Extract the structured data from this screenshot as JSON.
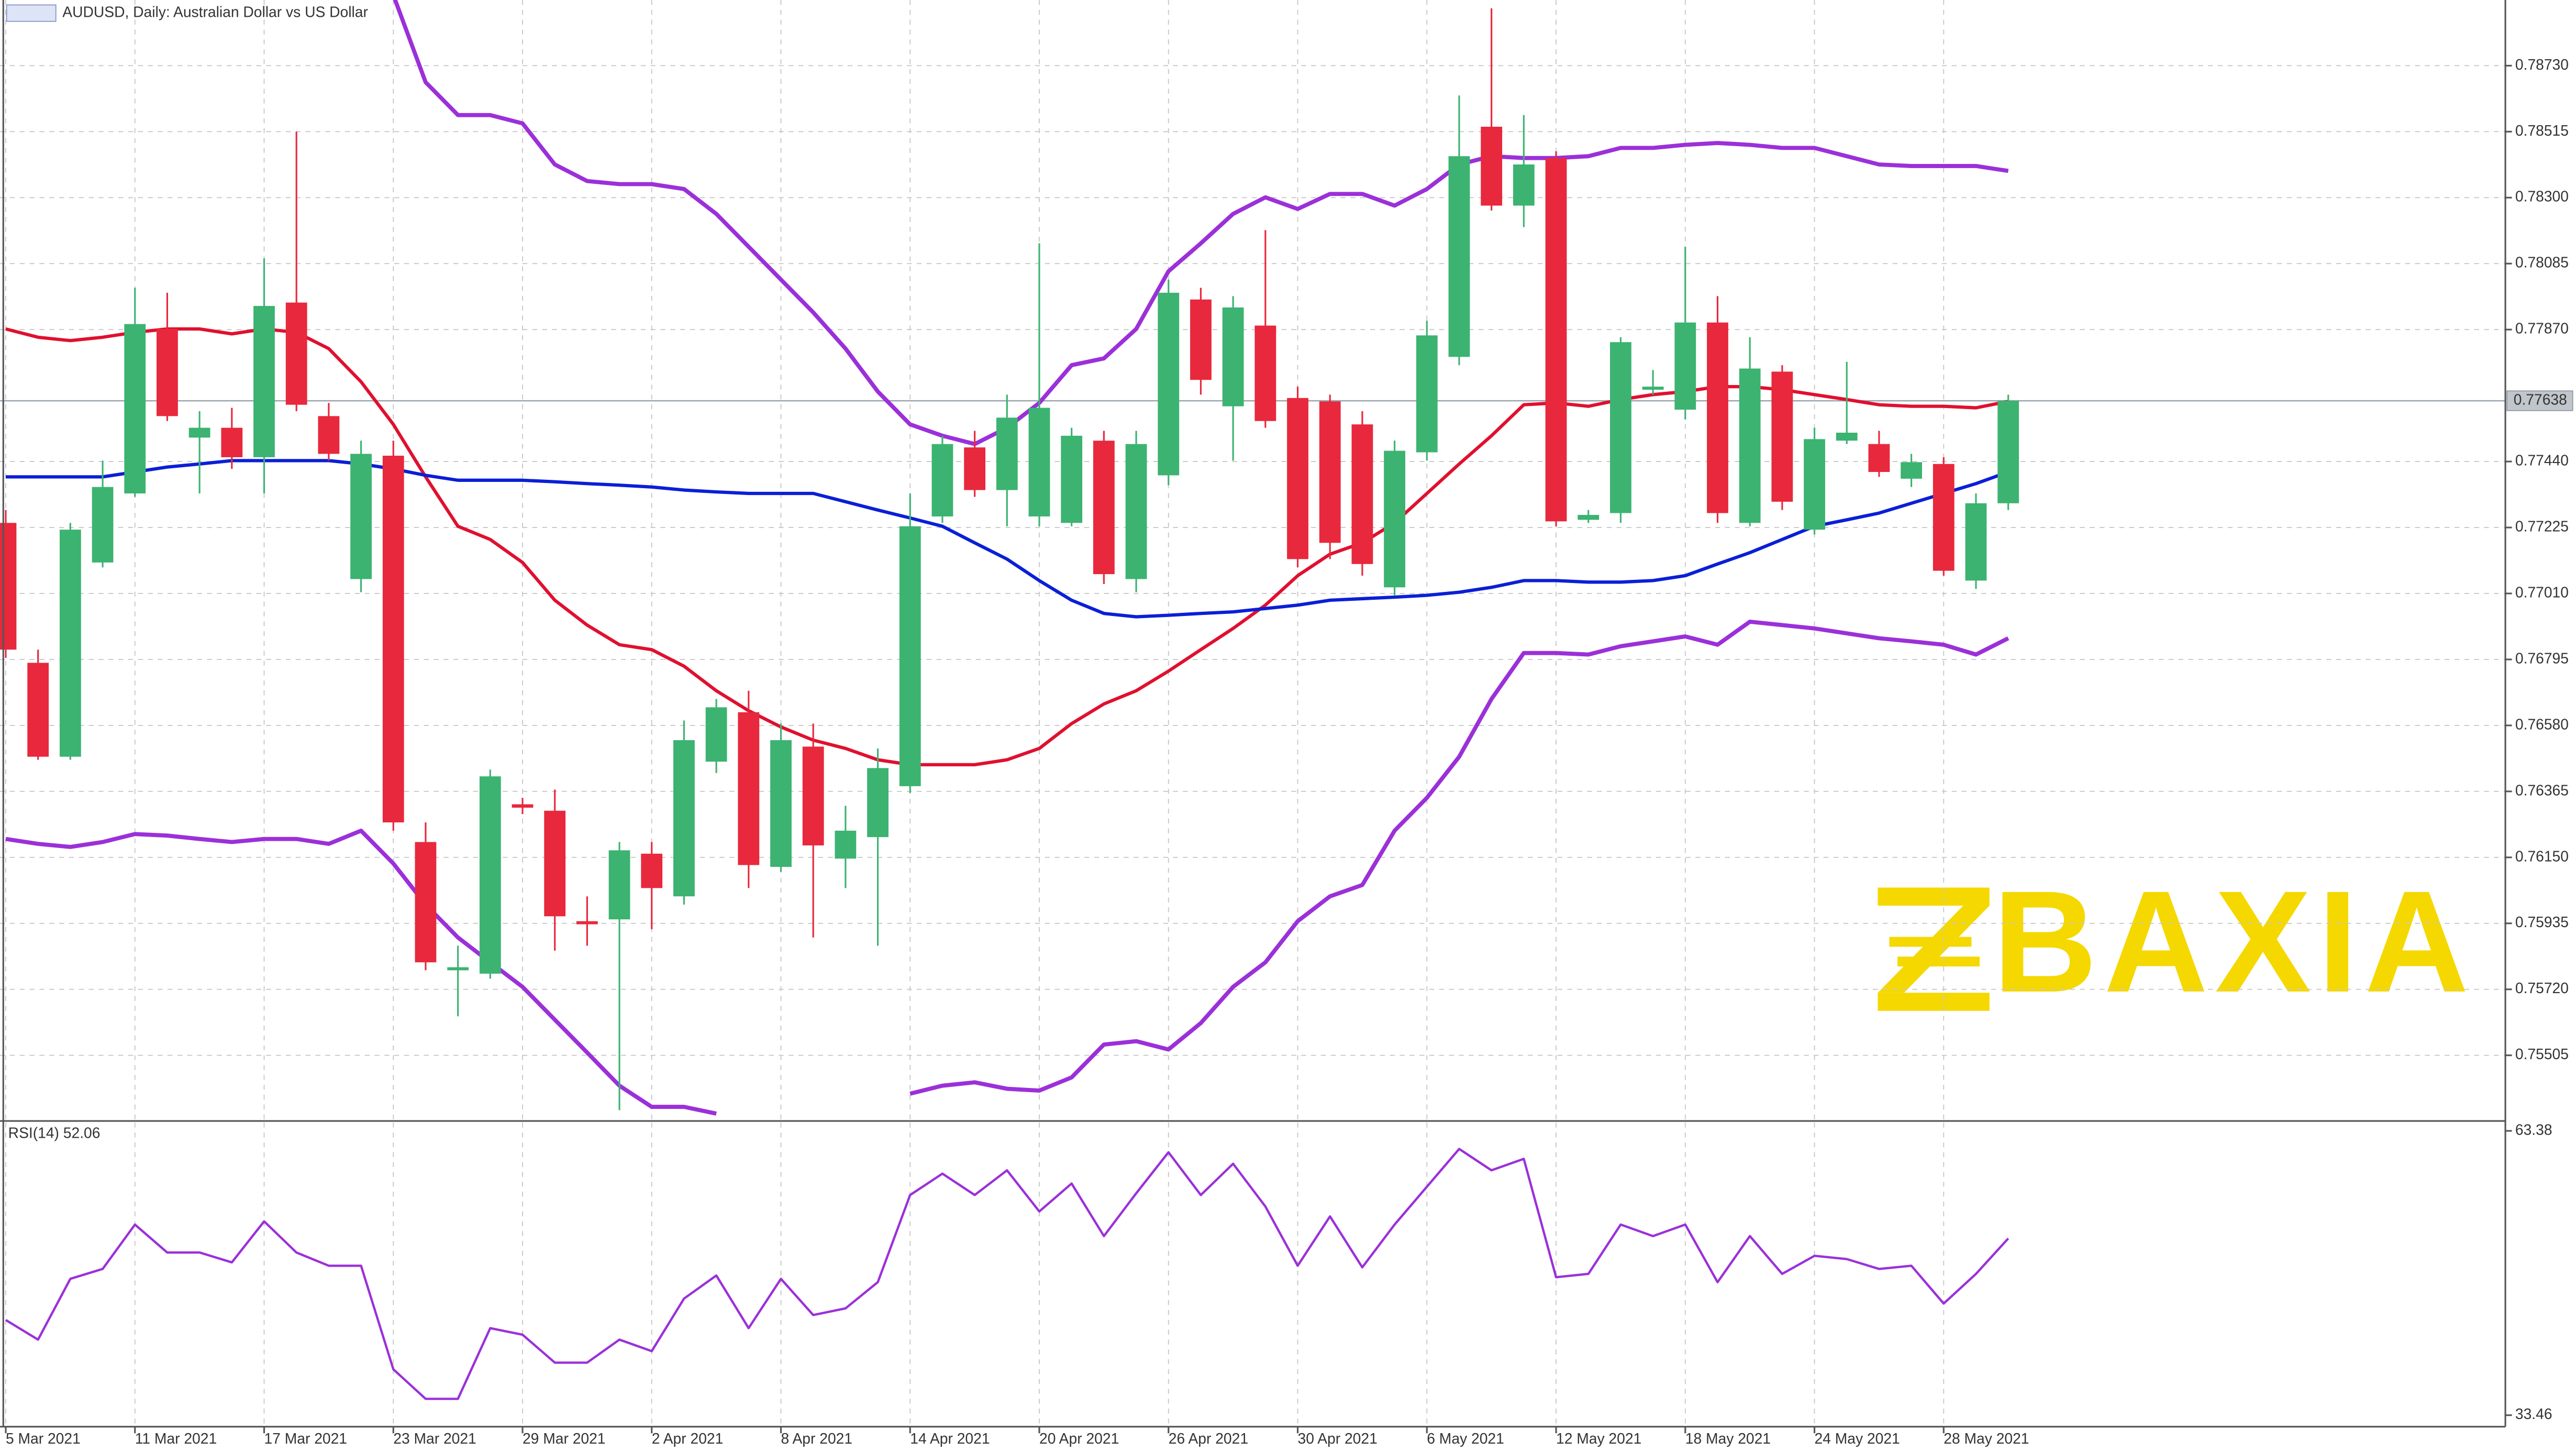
{
  "chart_data": {
    "type": "candlestick",
    "title": "AUDUSD, Daily:  Australian Dollar vs US Dollar",
    "watermark": "BAXIA",
    "categories": [
      "5 Mar 2021",
      null,
      null,
      null,
      "11 Mar 2021",
      null,
      null,
      null,
      "17 Mar 2021",
      null,
      null,
      null,
      "23 Mar 2021",
      null,
      null,
      null,
      "29 Mar 2021",
      null,
      null,
      null,
      "2 Apr 2021",
      null,
      null,
      null,
      "8 Apr 2021",
      null,
      null,
      null,
      "14 Apr 2021",
      null,
      null,
      null,
      "20 Apr 2021",
      null,
      null,
      null,
      "26 Apr 2021",
      null,
      null,
      null,
      "30 Apr 2021",
      null,
      null,
      null,
      "6 May 2021",
      null,
      null,
      null,
      "12 May 2021",
      null,
      null,
      null,
      "18 May 2021",
      null,
      null,
      null,
      "24 May 2021",
      null,
      null,
      null,
      "28 May 2021",
      null,
      null
    ],
    "candles": {
      "up_color": "#3cb371",
      "down_color": "#e8283c",
      "open": [
        0.7724,
        0.76784,
        0.76478,
        0.77111,
        0.77336,
        0.77872,
        0.77518,
        0.7755,
        0.77454,
        0.77958,
        0.77588,
        0.77057,
        0.77459,
        0.762,
        0.75782,
        0.75771,
        0.76323,
        0.76302,
        0.75942,
        0.75948,
        0.76162,
        0.76023,
        0.76462,
        0.76623,
        0.76119,
        0.76511,
        0.76146,
        0.76216,
        0.76382,
        0.77261,
        0.77486,
        0.77347,
        0.77261,
        0.7724,
        0.77508,
        0.77057,
        0.77395,
        0.77968,
        0.7762,
        0.77883,
        0.77647,
        0.77636,
        0.77561,
        0.7703,
        0.7747,
        0.77781,
        0.78531,
        0.78274,
        0.78429,
        0.7725,
        0.77272,
        0.77674,
        0.77609,
        0.77893,
        0.7724,
        0.77733,
        0.77218,
        0.77508,
        0.77497,
        0.77384,
        0.77432,
        0.77052,
        0.77304
      ],
      "high": [
        0.77282,
        0.76827,
        0.7724,
        0.77443,
        0.78006,
        0.7799,
        0.77604,
        0.77615,
        0.78102,
        0.78515,
        0.77631,
        0.77508,
        0.77508,
        0.76264,
        0.75862,
        0.76436,
        0.76344,
        0.76371,
        0.76023,
        0.762,
        0.762,
        0.76596,
        0.76666,
        0.76693,
        0.76586,
        0.76586,
        0.76318,
        0.76505,
        0.77336,
        0.77524,
        0.7754,
        0.77658,
        0.78151,
        0.7755,
        0.7754,
        0.7754,
        0.78033,
        0.78006,
        0.77979,
        0.78194,
        0.77684,
        0.77658,
        0.77604,
        0.77508,
        0.77899,
        0.78633,
        0.78917,
        0.78569,
        0.78451,
        0.77282,
        0.77845,
        0.77738,
        0.7814,
        0.77979,
        0.77845,
        0.77754,
        0.7755,
        0.77765,
        0.7754,
        0.77465,
        0.77454,
        0.77336,
        0.77658
      ],
      "low": [
        0.768,
        0.76468,
        0.76468,
        0.77095,
        0.77325,
        0.77572,
        0.77336,
        0.77416,
        0.77336,
        0.77604,
        0.77443,
        0.77014,
        0.76237,
        0.75782,
        0.75632,
        0.75755,
        0.76291,
        0.75846,
        0.75862,
        0.75326,
        0.75916,
        0.75996,
        0.76425,
        0.7605,
        0.76103,
        0.75889,
        0.7605,
        0.75862,
        0.7636,
        0.7724,
        0.77325,
        0.77229,
        0.77229,
        0.77229,
        0.77041,
        0.77014,
        0.77363,
        0.77658,
        0.77443,
        0.7755,
        0.77095,
        0.77122,
        0.77068,
        0.77004,
        0.77443,
        0.77754,
        0.78258,
        0.78204,
        0.77229,
        0.7724,
        0.7724,
        0.77658,
        0.77577,
        0.7724,
        0.77229,
        0.77282,
        0.77202,
        0.77497,
        0.7739,
        0.77357,
        0.77068,
        0.77025,
        0.77282
      ],
      "close": [
        0.76827,
        0.76478,
        0.77218,
        0.77357,
        0.77888,
        0.77588,
        0.7755,
        0.77454,
        0.77947,
        0.77625,
        0.77465,
        0.77465,
        0.76264,
        0.75808,
        0.75792,
        0.76414,
        0.76312,
        0.75958,
        0.75932,
        0.76173,
        0.7605,
        0.76532,
        0.76639,
        0.76125,
        0.76532,
        0.76189,
        0.76237,
        0.76441,
        0.77229,
        0.77497,
        0.77347,
        0.77583,
        0.77615,
        0.77524,
        0.77073,
        0.77497,
        0.7799,
        0.77706,
        0.77942,
        0.77572,
        0.77122,
        0.77175,
        0.77106,
        0.77475,
        0.77851,
        0.78435,
        0.78274,
        0.78408,
        0.77245,
        0.77266,
        0.77829,
        0.77684,
        0.77893,
        0.77272,
        0.77743,
        0.77309,
        0.77513,
        0.77534,
        0.77406,
        0.77438,
        0.77084,
        0.77304,
        0.77638
      ]
    },
    "lines": [
      {
        "color": "#e0102f",
        "width": 2,
        "values": [
          0.77872,
          0.77845,
          0.77834,
          0.77845,
          0.77861,
          0.77872,
          0.77872,
          0.77856,
          0.77872,
          0.77861,
          0.77808,
          0.777,
          0.77561,
          0.7739,
          0.77229,
          0.77186,
          0.77111,
          0.76988,
          0.76907,
          0.76843,
          0.76827,
          0.76773,
          0.76693,
          0.76628,
          0.76575,
          0.76532,
          0.76505,
          0.76468,
          0.76452,
          0.76452,
          0.76452,
          0.76468,
          0.76505,
          0.76586,
          0.7665,
          0.76693,
          0.76757,
          0.76827,
          0.76896,
          0.76972,
          0.77068,
          0.77138,
          0.77175,
          0.7724,
          0.77336,
          0.77432,
          0.77524,
          0.77625,
          0.77631,
          0.7762,
          0.77642,
          0.77658,
          0.77668,
          0.77684,
          0.77684,
          0.77674,
          0.77658,
          0.77642,
          0.77625,
          0.7762,
          0.7762,
          0.77615,
          0.77636
        ]
      },
      {
        "color": "#0a1fd6",
        "width": 2,
        "values": [
          0.7739,
          0.7739,
          0.7739,
          0.7739,
          0.77406,
          0.77422,
          0.77432,
          0.77443,
          0.77443,
          0.77443,
          0.77443,
          0.77432,
          0.77416,
          0.77395,
          0.77379,
          0.77379,
          0.77379,
          0.77374,
          0.77368,
          0.77363,
          0.77357,
          0.77347,
          0.77341,
          0.77336,
          0.77336,
          0.77336,
          0.77309,
          0.77282,
          0.77256,
          0.77229,
          0.77175,
          0.77122,
          0.77052,
          0.76988,
          0.76945,
          0.76934,
          0.76939,
          0.76945,
          0.7695,
          0.76961,
          0.76972,
          0.76988,
          0.76993,
          0.76998,
          0.77004,
          0.77014,
          0.7703,
          0.77052,
          0.77052,
          0.77047,
          0.77047,
          0.77052,
          0.77068,
          0.77106,
          0.77143,
          0.77186,
          0.77229,
          0.7725,
          0.77272,
          0.77304,
          0.77336,
          0.77368,
          0.77406
        ]
      },
      {
        "color": "#9b30d9",
        "width": 2.5,
        "values": [
          null,
          null,
          null,
          null,
          null,
          null,
          null,
          null,
          null,
          null,
          null,
          null,
          0.7896,
          0.78676,
          0.78569,
          0.78569,
          0.78542,
          0.78408,
          0.78354,
          0.78344,
          0.78344,
          0.78328,
          0.78247,
          0.7814,
          0.78033,
          0.77926,
          0.77808,
          0.77668,
          0.77561,
          0.77524,
          0.77497,
          0.7755,
          0.77631,
          0.77754,
          0.77776,
          0.77872,
          0.7806,
          0.78151,
          0.78247,
          0.78301,
          0.78263,
          0.78312,
          0.78312,
          0.78274,
          0.78328,
          0.78408,
          0.78435,
          0.78429,
          0.78429,
          0.78435,
          0.78462,
          0.78462,
          0.78472,
          0.78478,
          0.78472,
          0.78462,
          0.78462,
          0.78435,
          0.78408,
          0.78403,
          0.78403,
          0.78403,
          0.78387
        ]
      },
      {
        "color": "#9b30d9",
        "width": 2.5,
        "values": [
          0.7621,
          0.76194,
          0.76184,
          0.762,
          0.76226,
          0.76221,
          0.7621,
          0.762,
          0.7621,
          0.7621,
          0.76194,
          0.76237,
          0.7613,
          0.75996,
          0.75889,
          0.75808,
          0.75728,
          0.75621,
          0.75514,
          0.75406,
          0.75337,
          0.75337,
          0.75315,
          null,
          null,
          null,
          null,
          null,
          0.7538,
          0.75406,
          0.75417,
          0.75396,
          0.7539,
          0.75433,
          0.7554,
          0.75551,
          0.75524,
          0.7561,
          0.75728,
          0.75808,
          0.75942,
          0.76023,
          0.7606,
          0.76237,
          0.76344,
          0.76478,
          0.76666,
          0.76816,
          0.76816,
          0.76811,
          0.76838,
          0.76854,
          0.7687,
          0.76843,
          0.76918,
          0.76907,
          0.76896,
          0.7688,
          0.76864,
          0.76854,
          0.76843,
          0.76811,
          0.76864
        ]
      }
    ],
    "current_price": {
      "value": 0.77638,
      "label": "0.77638"
    },
    "ylim": [
      0.75291,
      0.78944
    ],
    "yticks": [
      {
        "value": 0.7873,
        "label": "0.78730"
      },
      {
        "value": 0.78515,
        "label": "0.78515"
      },
      {
        "value": 0.783,
        "label": "0.78300"
      },
      {
        "value": 0.78085,
        "label": "0.78085"
      },
      {
        "value": 0.7787,
        "label": "0.77870"
      },
      {
        "value": 0.7744,
        "label": "0.77440"
      },
      {
        "value": 0.77225,
        "label": "0.77225"
      },
      {
        "value": 0.7701,
        "label": "0.77010"
      },
      {
        "value": 0.76795,
        "label": "0.76795"
      },
      {
        "value": 0.7658,
        "label": "0.76580"
      },
      {
        "value": 0.76365,
        "label": "0.76365"
      },
      {
        "value": 0.7615,
        "label": "0.76150"
      },
      {
        "value": 0.75935,
        "label": "0.75935"
      },
      {
        "value": 0.7572,
        "label": "0.75720"
      },
      {
        "value": 0.75505,
        "label": "0.75505"
      }
    ],
    "grid": true,
    "rsi": {
      "label": "RSI(14) 52.06",
      "color": "#9b30d9",
      "ylim": [
        32.25,
        64.25
      ],
      "yticks": [
        63.38,
        33.46
      ],
      "values": [
        43.48,
        41.41,
        47.81,
        48.85,
        53.52,
        50.58,
        50.58,
        49.54,
        53.86,
        50.58,
        49.19,
        49.19,
        38.29,
        35.18,
        35.18,
        42.62,
        41.93,
        38.99,
        38.99,
        41.41,
        40.2,
        45.73,
        48.16,
        42.62,
        47.81,
        44.0,
        44.7,
        47.46,
        56.63,
        58.88,
        56.63,
        59.23,
        54.9,
        57.84,
        52.31,
        56.81,
        61.13,
        56.63,
        59.92,
        55.42,
        49.19,
        54.38,
        49.02,
        53.52,
        57.5,
        61.48,
        59.23,
        60.44,
        47.98,
        48.33,
        53.52,
        52.31,
        53.52,
        47.46,
        52.31,
        48.33,
        50.23,
        49.89,
        48.85,
        49.19,
        45.21,
        48.33,
        52.06
      ]
    }
  }
}
